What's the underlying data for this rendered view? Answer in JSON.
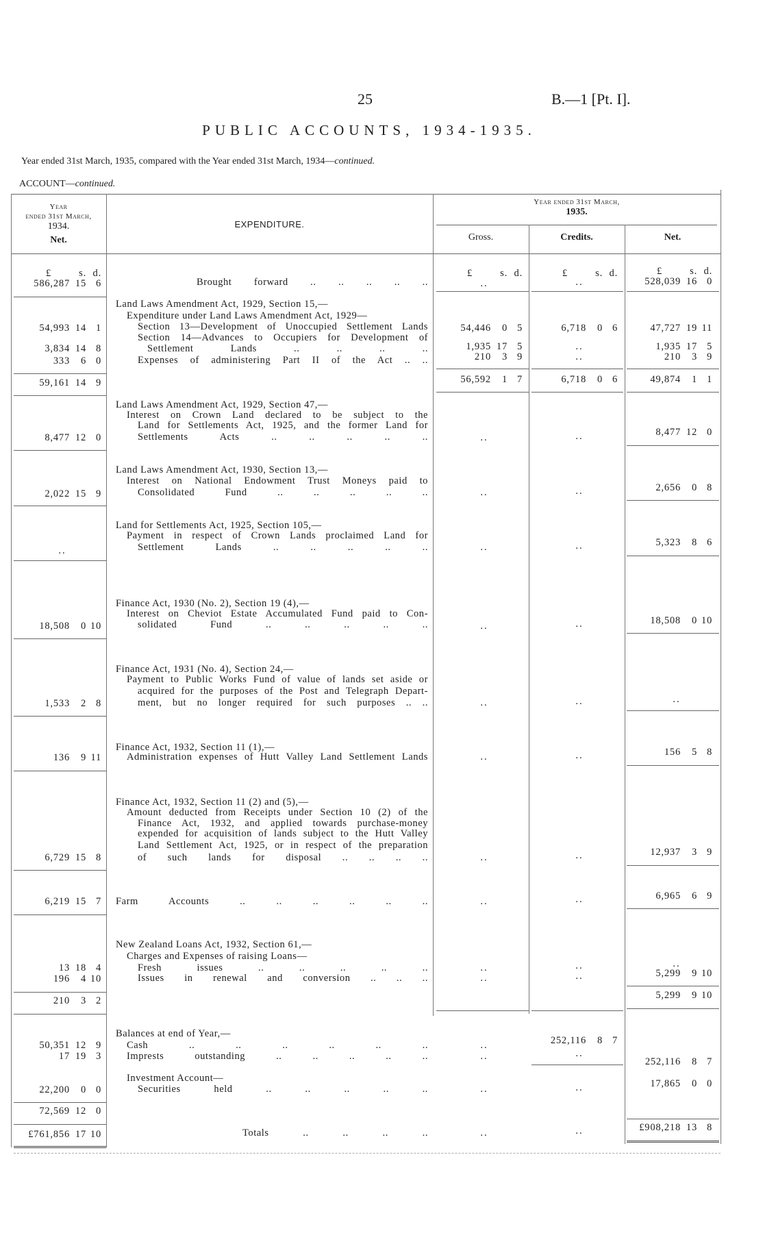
{
  "header": {
    "page_number": "25",
    "reference": "B.—1 [Pt. I].",
    "title": "PUBLIC ACCOUNTS, 1934-1935.",
    "subtitle_main": "Year ended 31st March, 1935, compared with the Year ended 31st March, 1934—",
    "subtitle_italic": "continued.",
    "account_main": "ACCOUNT—",
    "account_italic": "continued."
  },
  "table_header": {
    "prev_year": [
      "Year",
      "ended 31st March,",
      "1934.",
      "Net."
    ],
    "expenditure": "EXPENDITURE.",
    "current_year": [
      "Year ended 31st March,",
      "1935."
    ],
    "gross": "Gross.",
    "credits": "Credits.",
    "net": "Net.",
    "units": "£ s. d."
  },
  "expenditure_lines": [
    "Brought forward .. .. .. .. ..",
    "Land Laws Amendment Act, 1929, Section 15,—",
    "Expenditure under Land Laws Amendment Act, 1929—",
    "Section 13—Development of Unoccupied Settlement Lands",
    "Section 14—Advances to Occupiers for Development of",
    "Settlement Lands .. .. .. ..",
    "Expenses of administering Part II of the Act .. ..",
    "Land Laws Amendment Act, 1929, Section 47,—",
    "Interest on Crown Land declared to be subject to the",
    "Land for Settlements Act, 1925, and the former Land for",
    "Settlements Acts .. .. .. .. ..",
    "Land Laws Amendment Act, 1930, Section 13,—",
    "Interest on National Endowment Trust Moneys paid to",
    "Consolidated Fund .. .. .. .. ..",
    "Land for Settlements Act, 1925, Section 105,—",
    "Payment in respect of Crown Lands proclaimed Land for",
    "Settlement Lands .. .. .. .. ..",
    "Finance Act, 1930 (No. 2), Section 19 (4),—",
    "Interest on Cheviot Estate Accumulated Fund paid to Con-",
    "solidated Fund .. .. .. .. ..",
    "Finance Act, 1931 (No. 4), Section 24,—",
    "Payment to Public Works Fund of value of lands set aside or",
    "acquired for the purposes of the Post and Telegraph Depart-",
    "ment, but no longer required for such purposes .. ..",
    "Finance Act, 1932, Section 11 (1),—",
    "Administration expenses of Hutt Valley Land Settlement Lands",
    "Finance Act, 1932, Section 11 (2) and (5),—",
    "Amount deducted from Receipts under Section 10 (2) of the",
    "Finance Act, 1932, and applied towards purchase-money",
    "expended for acquisition of lands subject to the Hutt Valley",
    "Land Settlement Act, 1925, or in respect of the preparation",
    "of such lands for disposal .. .. .. ..",
    "Farm Accounts .. .. .. .. .. ..",
    "New Zealand Loans Act, 1932, Section 61,—",
    "Charges and Expenses of raising Loans—",
    "Fresh issues .. .. .. .. ..",
    "Issues in renewal and conversion .. .. ..",
    "Balances at end of Year,—",
    "Cash .. .. .. .. .. ..",
    "Imprests outstanding .. .. .. .. ..",
    "Investment Account—",
    "Securities held .. .. .. .. ..",
    "Totals .. .. .. .."
  ],
  "prev_year_net": [
    "586,287 15 6",
    "54,993 14 1",
    "3,834 14 8",
    "333 6 0",
    "59,161 14 9",
    "8,477 12 0",
    "2,022 15 9",
    "..",
    "18,508 0 10",
    "1,533 2 8",
    "136 9 11",
    "6,729 15 8",
    "6,219 15 7",
    "13 18 4",
    "196 4 10",
    "210 3 2",
    "50,351 12 9",
    "17 19 3",
    "22,200 0 0",
    "72,569 12 0",
    "£761,856 17 10"
  ],
  "gross": [
    "..",
    "54,446 0 5",
    "1,935 17 5",
    "210 3 9",
    "56,592 1 7",
    "..",
    "..",
    "..",
    "..",
    "..",
    "..",
    "..",
    "..",
    "..",
    "..",
    "..",
    "..",
    "..",
    ".."
  ],
  "credits": [
    "..",
    "6,718 0 6",
    "..",
    "..",
    "6,718 0 6",
    "..",
    "..",
    "..",
    "..",
    "..",
    "..",
    "..",
    "..",
    "..",
    "..",
    "252,116 8 7",
    "..",
    "..",
    ".."
  ],
  "net": [
    "528,039 16 0",
    "47,727 19 11",
    "1,935 17 5",
    "210 3 9",
    "49,874 1 1",
    "8,477 12 0",
    "2,656 0 8",
    "5,323 8 6",
    "18,508 0 10",
    "..",
    "156 5 8",
    "12,937 3 9",
    "6,965 6 9",
    "..",
    "5,299 9 10",
    "5,299 9 10",
    "252,116 8 7",
    "17,865 0 0",
    "£908,218 13 8"
  ]
}
